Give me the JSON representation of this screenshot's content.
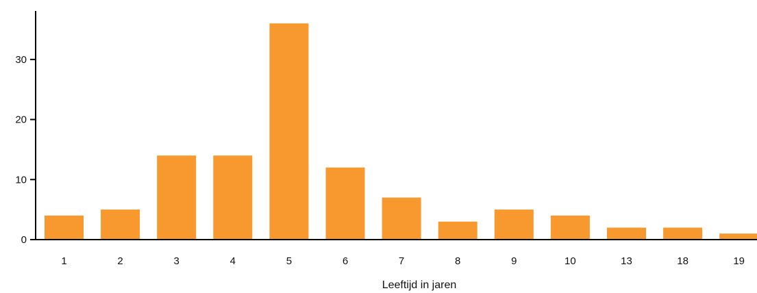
{
  "chart_data": {
    "type": "bar",
    "categories": [
      "1",
      "2",
      "3",
      "4",
      "5",
      "6",
      "7",
      "8",
      "9",
      "10",
      "13",
      "18",
      "19"
    ],
    "values": [
      4,
      5,
      14,
      14,
      36,
      12,
      7,
      3,
      5,
      4,
      2,
      2,
      1
    ],
    "title": "",
    "xlabel": "Leeftijd in jaren",
    "ylabel": "",
    "ylim": [
      0,
      38
    ],
    "yticks": [
      0,
      10,
      20,
      30
    ],
    "grid": false,
    "legend": "none",
    "bar_color": "#f7992e",
    "axis_color": "#000000"
  }
}
